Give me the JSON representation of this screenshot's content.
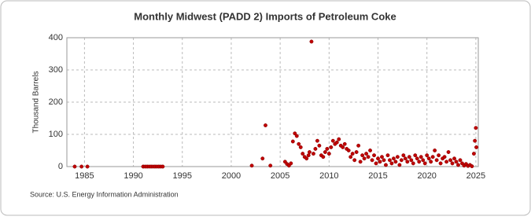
{
  "chart_data": {
    "type": "scatter",
    "title": "Monthly Midwest (PADD 2) Imports of Petroleum Coke",
    "y_label": "Thousand Barrels",
    "source": "Source: U.S. Energy Information Administration",
    "color": "#c00000",
    "grid": true,
    "xlim": [
      1983.2,
      2025.25
    ],
    "ylim": [
      0,
      400
    ],
    "xticks": [
      1985,
      1990,
      1995,
      2000,
      2005,
      2010,
      2015,
      2020,
      2025
    ],
    "yticks": [
      0,
      100,
      200,
      300,
      400
    ],
    "x": [
      1984.0,
      1984.7,
      1985.3,
      1991.0,
      1991.2,
      1991.4,
      1991.6,
      1991.8,
      1992.0,
      1992.2,
      1992.4,
      1992.6,
      1992.8,
      1993.0,
      2002.1,
      2003.2,
      2003.5,
      2004.0,
      2005.5,
      2005.7,
      2005.9,
      2006.1,
      2006.3,
      2006.5,
      2006.7,
      2006.9,
      2007.1,
      2007.3,
      2007.5,
      2007.7,
      2007.9,
      2008.0,
      2008.2,
      2008.4,
      2008.6,
      2008.8,
      2009.0,
      2009.2,
      2009.4,
      2009.6,
      2009.8,
      2010.0,
      2010.2,
      2010.4,
      2010.6,
      2010.8,
      2011.0,
      2011.2,
      2011.4,
      2011.6,
      2011.8,
      2012.0,
      2012.2,
      2012.4,
      2012.6,
      2012.8,
      2013.0,
      2013.2,
      2013.4,
      2013.6,
      2013.8,
      2014.0,
      2014.2,
      2014.4,
      2014.6,
      2014.8,
      2015.0,
      2015.2,
      2015.4,
      2015.6,
      2015.8,
      2016.0,
      2016.2,
      2016.4,
      2016.6,
      2016.8,
      2017.0,
      2017.2,
      2017.4,
      2017.6,
      2017.8,
      2018.0,
      2018.2,
      2018.4,
      2018.6,
      2018.8,
      2019.0,
      2019.2,
      2019.4,
      2019.6,
      2019.8,
      2020.0,
      2020.2,
      2020.4,
      2020.6,
      2020.8,
      2021.0,
      2021.2,
      2021.4,
      2021.6,
      2021.8,
      2022.0,
      2022.2,
      2022.4,
      2022.6,
      2022.8,
      2023.0,
      2023.2,
      2023.4,
      2023.6,
      2023.8,
      2024.0,
      2024.2,
      2024.4,
      2024.6,
      2024.8,
      2024.9,
      2025.0,
      2025.05
    ],
    "values": [
      0,
      0,
      0,
      0,
      0,
      0,
      0,
      0,
      0,
      0,
      0,
      0,
      0,
      0,
      3,
      25,
      128,
      3,
      15,
      8,
      3,
      10,
      78,
      103,
      95,
      70,
      60,
      40,
      30,
      25,
      35,
      45,
      388,
      40,
      55,
      80,
      65,
      35,
      30,
      45,
      55,
      40,
      60,
      80,
      70,
      75,
      85,
      65,
      60,
      70,
      55,
      50,
      30,
      40,
      20,
      45,
      65,
      15,
      35,
      25,
      40,
      30,
      50,
      20,
      35,
      10,
      25,
      15,
      30,
      20,
      5,
      35,
      20,
      10,
      25,
      15,
      30,
      5,
      20,
      35,
      25,
      15,
      30,
      20,
      10,
      35,
      25,
      15,
      30,
      20,
      10,
      35,
      25,
      15,
      30,
      50,
      20,
      35,
      10,
      25,
      30,
      15,
      45,
      20,
      10,
      25,
      15,
      5,
      20,
      10,
      3,
      8,
      2,
      5,
      1,
      40,
      80,
      120,
      60
    ]
  }
}
